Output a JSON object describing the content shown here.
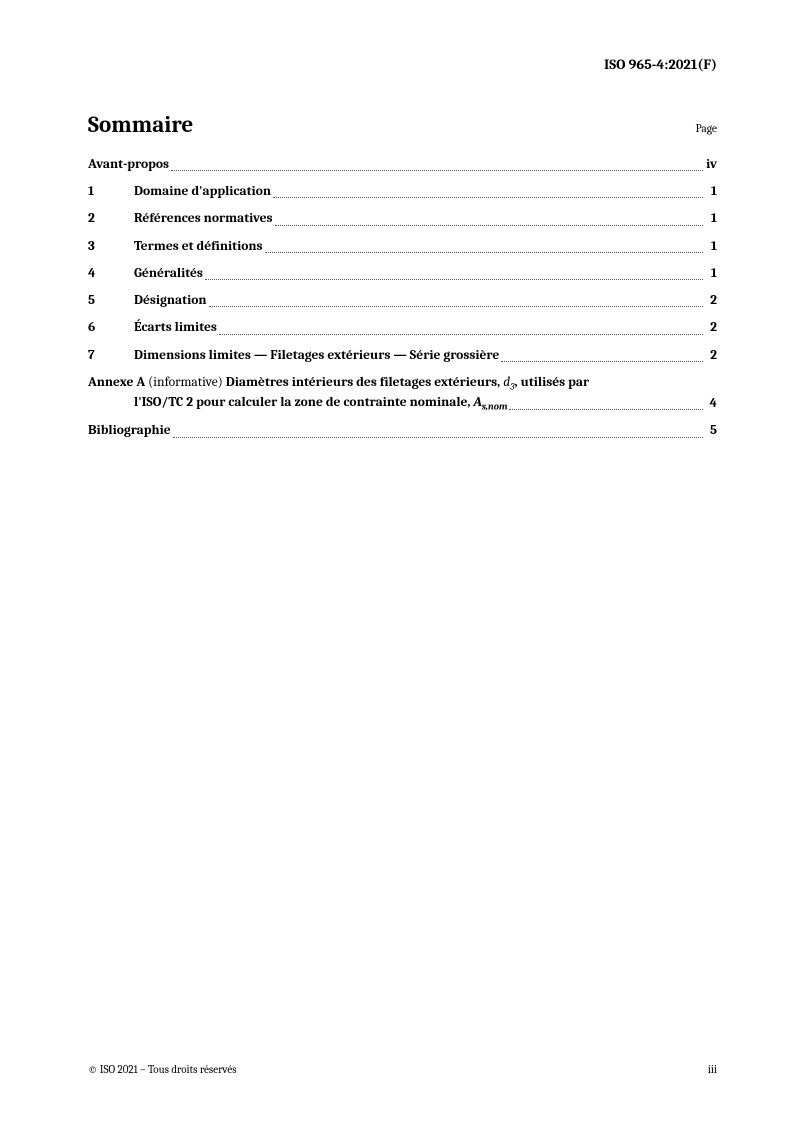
{
  "header": {
    "doc_id": "ISO 965-4:2021(F)"
  },
  "title": "Sommaire",
  "page_label": "Page",
  "toc": {
    "avant_propos": {
      "title": "Avant-propos",
      "page": "iv"
    },
    "s1": {
      "num": "1",
      "title": "Domaine d'application",
      "page": "1"
    },
    "s2": {
      "num": "2",
      "title": "Références normatives",
      "page": "1"
    },
    "s3": {
      "num": "3",
      "title": "Termes et définitions",
      "page": "1"
    },
    "s4": {
      "num": "4",
      "title": "Généralités",
      "page": "1"
    },
    "s5": {
      "num": "5",
      "title": "Désignation",
      "page": "2"
    },
    "s6": {
      "num": "6",
      "title": "Écarts limites",
      "page": "2"
    },
    "s7": {
      "num": "7",
      "title": "Dimensions limites — Filetages extérieurs — Série grossière",
      "page": "2"
    },
    "annex": {
      "prefix": "Annexe A",
      "paren": " (informative) ",
      "bold1": "Diamètres intérieurs des filetages extérieurs, ",
      "d3": "d",
      "d3sub": "3",
      "bold1b": ", utilisés par",
      "bold2a": "l'ISO/TC 2 pour calculer la zone de contrainte nominale, ",
      "As": "A",
      "As_sub": "s,nom",
      "page": "4"
    },
    "biblio": {
      "title": "Bibliographie",
      "page": "5"
    }
  },
  "footer": {
    "copyright": "© ISO 2021 – Tous droits réservés",
    "pagenum": "iii"
  }
}
